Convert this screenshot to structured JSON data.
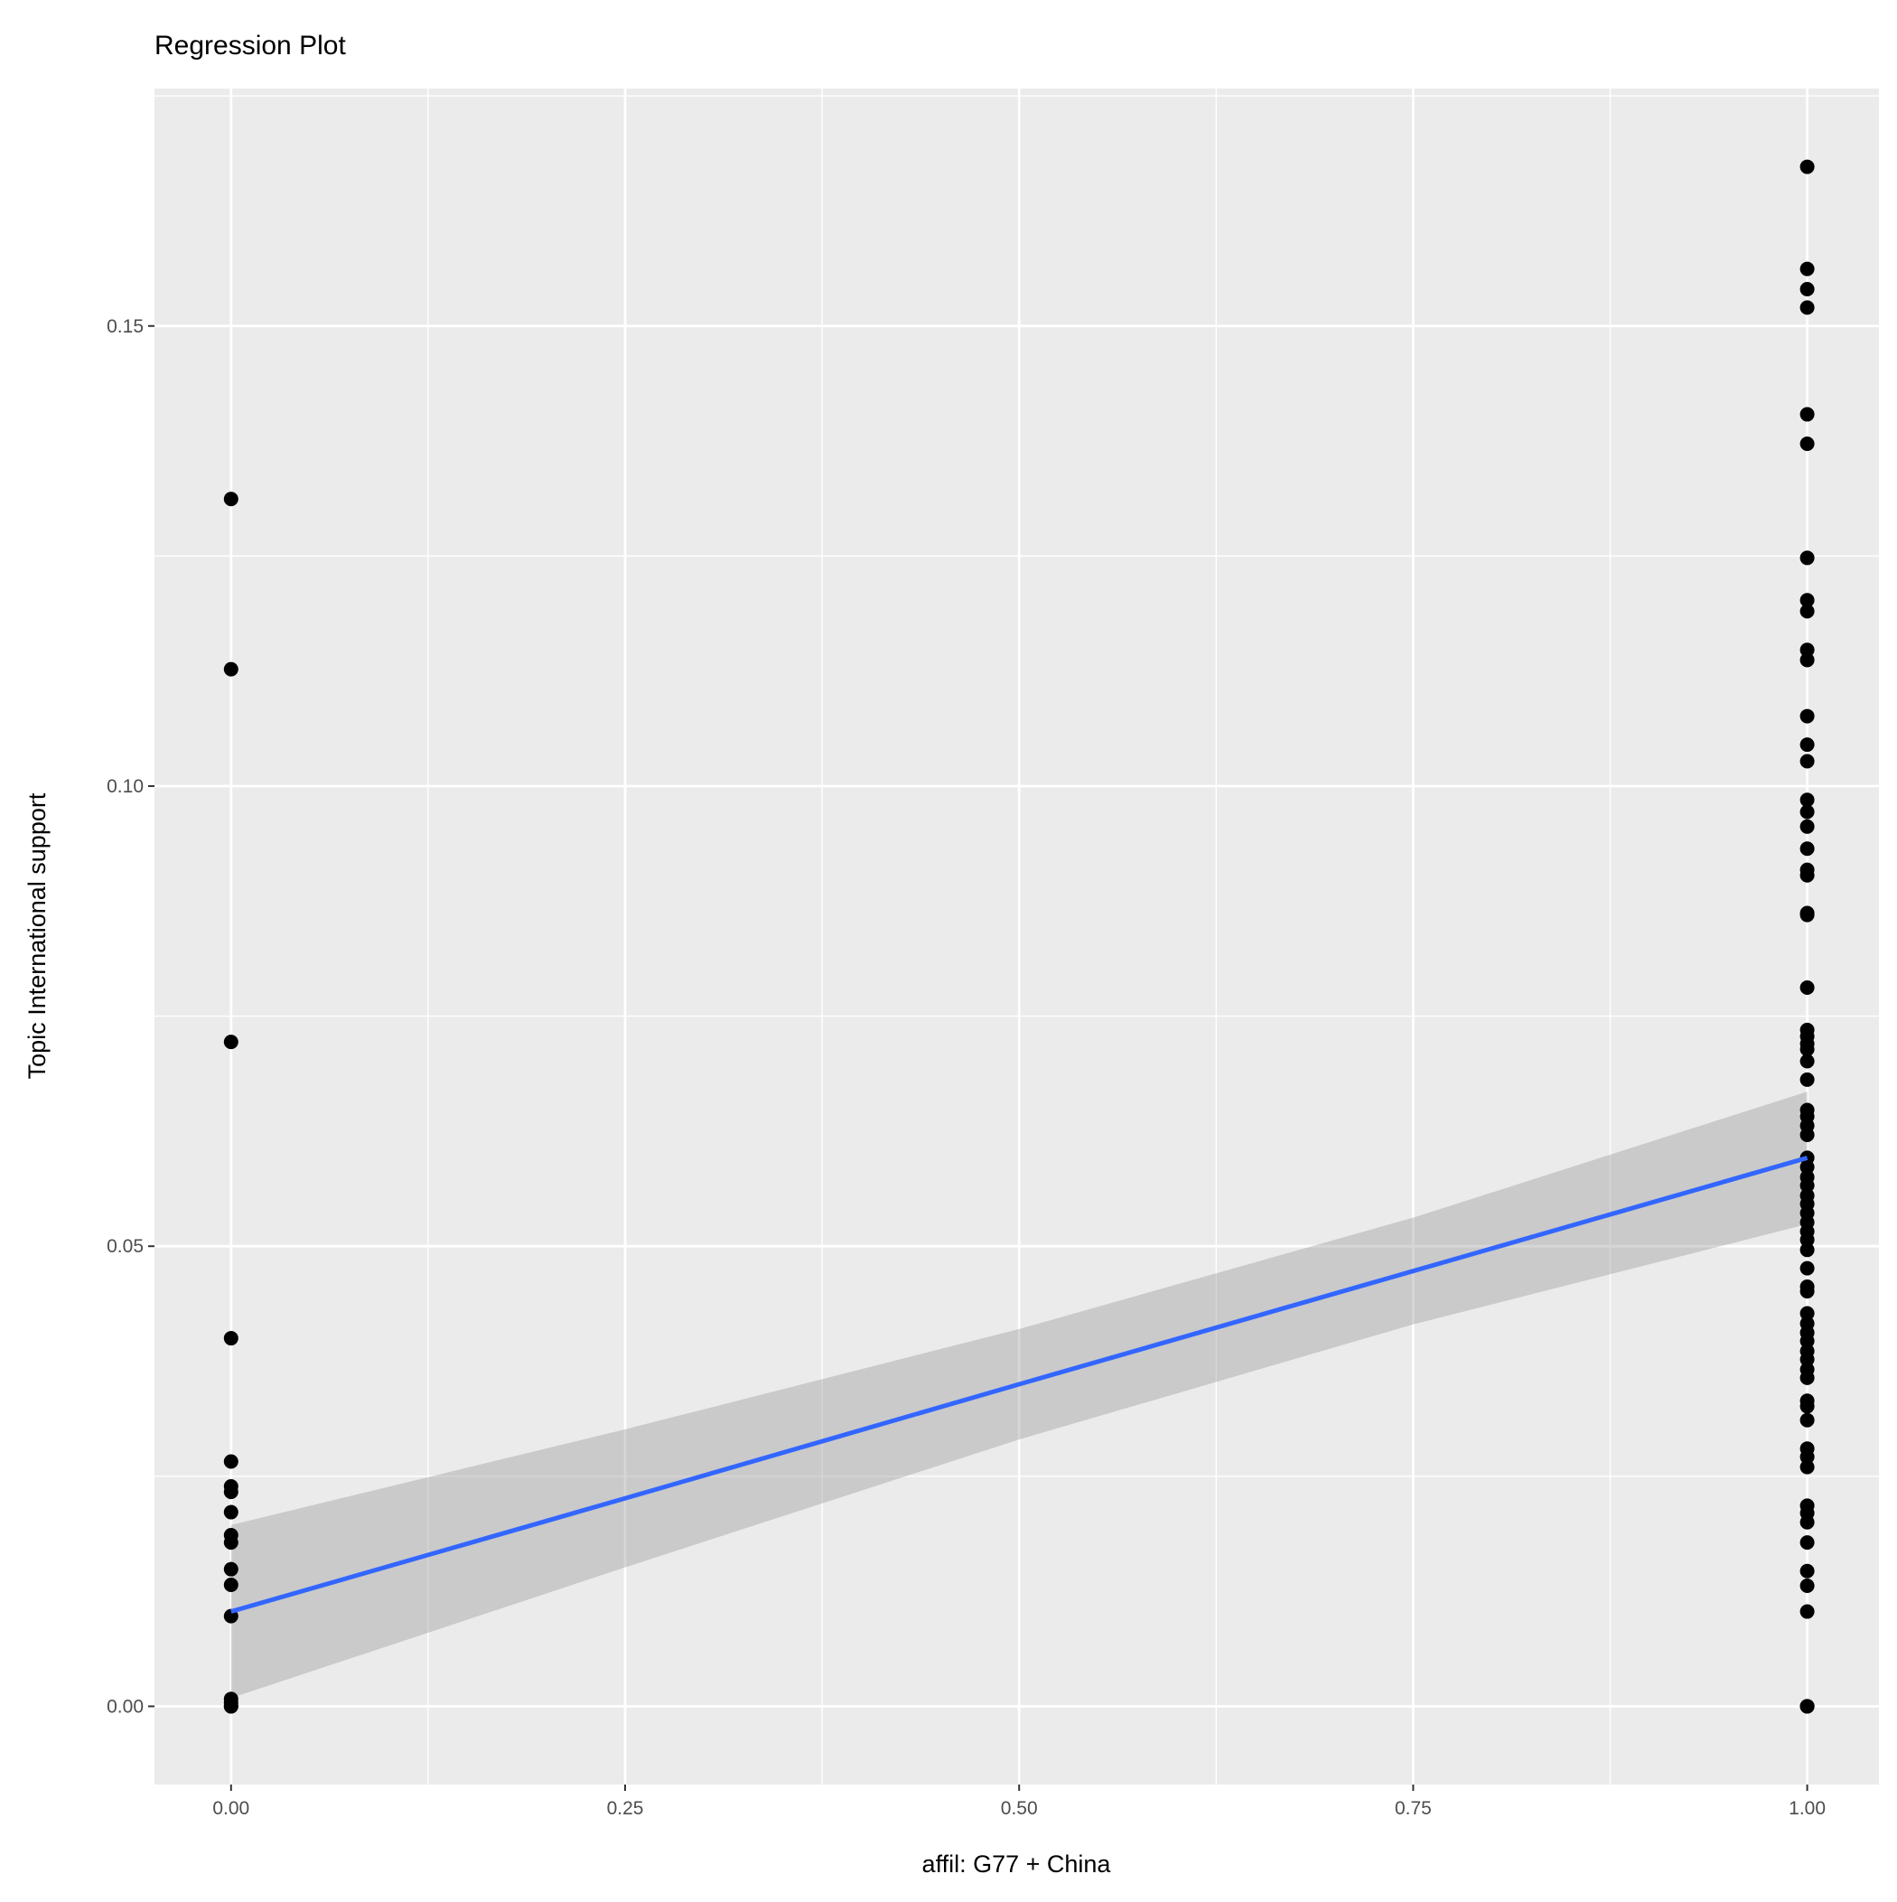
{
  "chart_data": {
    "type": "scatter",
    "title": "Regression Plot",
    "xlabel": "affil: G77 + China",
    "ylabel": "Topic International support",
    "xlim": [
      -0.0486,
      1.0455
    ],
    "ylim": [
      -0.0085,
      0.1758
    ],
    "x_ticks": [
      0,
      0.25,
      0.5,
      0.75,
      1
    ],
    "x_tick_labels": [
      "0.00",
      "0.25",
      "0.50",
      "0.75",
      "1.00"
    ],
    "y_ticks": [
      0,
      0.05,
      0.1,
      0.15
    ],
    "y_tick_labels": [
      "0.00",
      "0.05",
      "0.10",
      "0.15"
    ],
    "grid": true,
    "colors": {
      "panel": "#EBEBEB",
      "grid": "#FFFFFF",
      "points": "#000000",
      "line": "#3366FF",
      "ribbon": "#999999"
    },
    "points": [
      {
        "x": 0,
        "y": [
          0.1312,
          0.1127,
          0.0722,
          0.04,
          0.0266,
          0.0239,
          0.0233,
          0.0211,
          0.0186,
          0.0178,
          0.0149,
          0.0132,
          0.0098,
          0.0008,
          0.0004,
          0,
          0
        ]
      },
      {
        "x": 1,
        "y": [
          0.1673,
          0.1562,
          0.154,
          0.152,
          0.1404,
          0.1372,
          0.1248,
          0.1202,
          0.119,
          0.1148,
          0.1137,
          0.1076,
          0.1045,
          0.1027,
          0.0985,
          0.0972,
          0.0956,
          0.0932,
          0.0909,
          0.0903,
          0.0862,
          0.086,
          0.0781,
          0.0735,
          0.0728,
          0.072,
          0.0714,
          0.0701,
          0.0681,
          0.0648,
          0.0641,
          0.0631,
          0.0621,
          0.0596,
          0.0586,
          0.0575,
          0.0566,
          0.0555,
          0.0546,
          0.0536,
          0.0526,
          0.0516,
          0.0507,
          0.0496,
          0.0476,
          0.0456,
          0.0451,
          0.0427,
          0.0416,
          0.0406,
          0.0397,
          0.0386,
          0.0377,
          0.0366,
          0.0357,
          0.0332,
          0.0326,
          0.0311,
          0.028,
          0.0271,
          0.026,
          0.0218,
          0.021,
          0.02,
          0.0178,
          0.0147,
          0.0131,
          0.0103,
          0,
          0,
          0
        ]
      }
    ],
    "regression": {
      "x": [
        0,
        0.25,
        0.5,
        0.75,
        1
      ],
      "fit": [
        0.0103,
        0.0226,
        0.035,
        0.0473,
        0.0596
      ],
      "ci_lower": [
        0.0009,
        0.0151,
        0.029,
        0.0415,
        0.0524
      ],
      "ci_upper": [
        0.0197,
        0.0301,
        0.041,
        0.0531,
        0.0668
      ]
    }
  }
}
